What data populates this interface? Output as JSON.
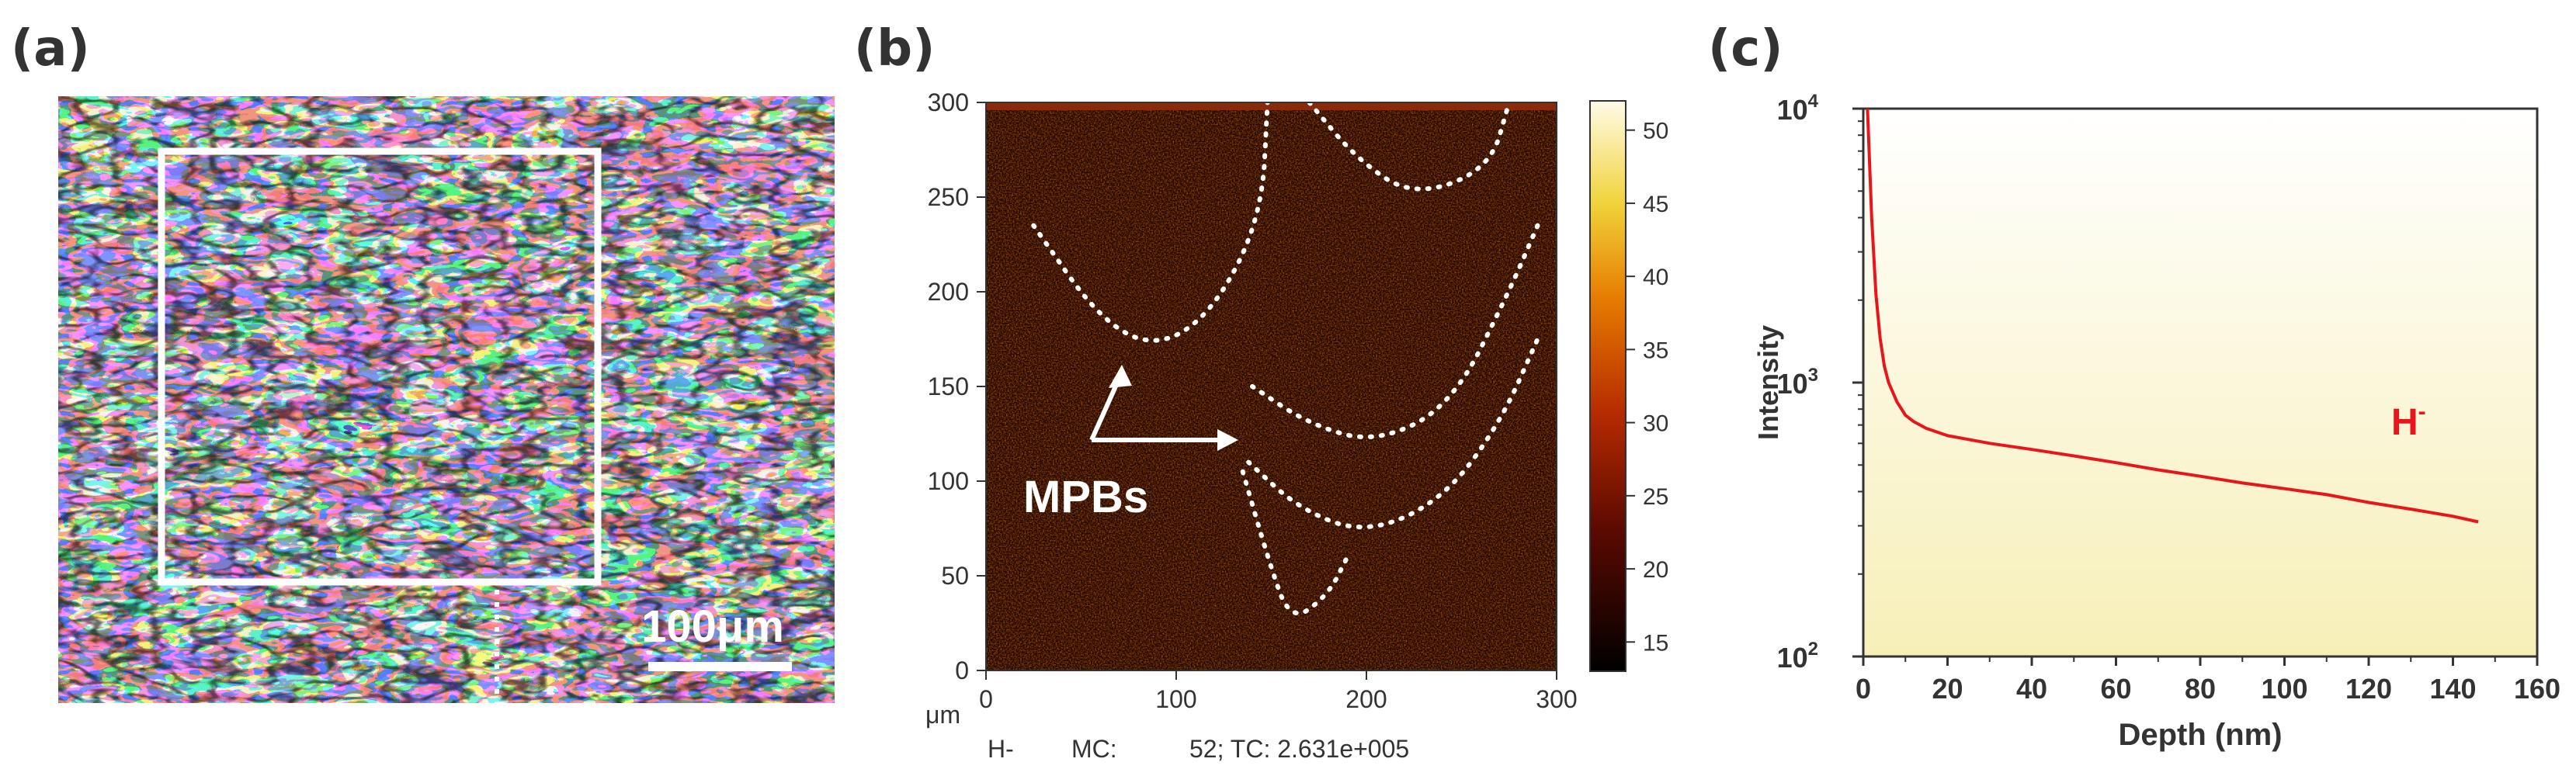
{
  "figure": {
    "panels": {
      "a": "(a)",
      "b": "(b)",
      "c": "(c)"
    }
  },
  "panel_a": {
    "scale_bar_label": "100μm"
  },
  "panel_b": {
    "annotation": "MPBs",
    "unit_label": "μm",
    "footer": {
      "species": "H-",
      "mc_label": "MC:",
      "mc_value": "52; TC: 2.631e+005"
    },
    "colorbar": {
      "ticks": [
        "50",
        "45",
        "40",
        "35",
        "30",
        "25",
        "20",
        "15"
      ]
    }
  },
  "chart_data": [
    {
      "type": "heatmap",
      "title": "",
      "xlabel": "μm",
      "ylabel": "",
      "xlim": [
        0,
        300
      ],
      "ylim": [
        0,
        300
      ],
      "x_ticks": [
        "0",
        "100",
        "200",
        "300"
      ],
      "y_ticks": [
        "0",
        "50",
        "100",
        "150",
        "200",
        "250",
        "300"
      ],
      "colorbar_range": [
        13,
        52
      ],
      "colorbar_ticks": [
        "15",
        "20",
        "25",
        "30",
        "35",
        "40",
        "45",
        "50"
      ],
      "annotations": [
        "MPBs"
      ],
      "boundaries": [
        {
          "name": "arc-1",
          "points": [
            [
              25,
              235
            ],
            [
              60,
              185
            ],
            [
              90,
              170
            ],
            [
              120,
              190
            ],
            [
              145,
              240
            ],
            [
              148,
              300
            ]
          ]
        },
        {
          "name": "arc-2",
          "points": [
            [
              170,
              300
            ],
            [
              195,
              270
            ],
            [
              225,
              250
            ],
            [
              265,
              265
            ],
            [
              275,
              300
            ]
          ]
        },
        {
          "name": "arc-3",
          "points": [
            [
              140,
              150
            ],
            [
              170,
              130
            ],
            [
              205,
              120
            ],
            [
              245,
              140
            ],
            [
              275,
              200
            ],
            [
              290,
              235
            ]
          ]
        },
        {
          "name": "arc-4",
          "points": [
            [
              138,
              110
            ],
            [
              165,
              85
            ],
            [
              200,
              72
            ],
            [
              240,
              90
            ],
            [
              270,
              130
            ],
            [
              290,
              175
            ]
          ]
        },
        {
          "name": "arc-5",
          "points": [
            [
              135,
              105
            ],
            [
              148,
              60
            ],
            [
              160,
              25
            ],
            [
              180,
              40
            ],
            [
              190,
              60
            ]
          ]
        }
      ]
    },
    {
      "type": "line",
      "title": "",
      "xlabel": "Depth (nm)",
      "ylabel": "Intensity",
      "xlim": [
        0,
        160
      ],
      "ylim": [
        100,
        10000
      ],
      "yscale": "log",
      "x_ticks": [
        "0",
        "20",
        "40",
        "60",
        "80",
        "100",
        "120",
        "140",
        "160"
      ],
      "y_ticks": [
        {
          "base": "10",
          "exp": "2"
        },
        {
          "base": "10",
          "exp": "3"
        },
        {
          "base": "10",
          "exp": "4"
        }
      ],
      "series": [
        {
          "name": "H-",
          "label_base": "H",
          "label_sup": "-",
          "color": "#e8161b",
          "x": [
            1,
            2,
            3,
            4,
            5,
            6,
            8,
            10,
            12,
            15,
            20,
            25,
            30,
            40,
            50,
            60,
            70,
            80,
            90,
            100,
            110,
            120,
            130,
            140,
            146
          ],
          "y": [
            10000,
            4000,
            2100,
            1450,
            1150,
            1000,
            850,
            760,
            720,
            680,
            640,
            620,
            600,
            570,
            540,
            510,
            480,
            455,
            430,
            410,
            390,
            365,
            345,
            325,
            310
          ]
        }
      ]
    }
  ]
}
